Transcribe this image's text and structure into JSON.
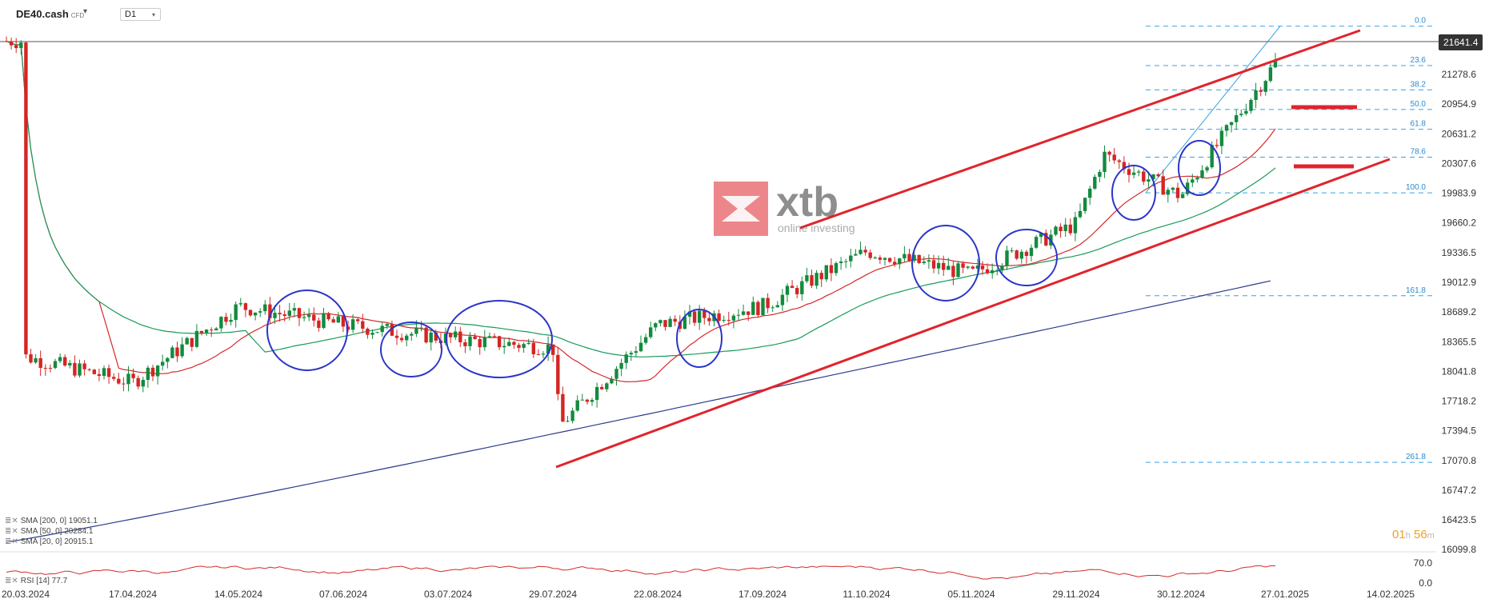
{
  "header": {
    "symbol": "DE40.cash",
    "symbol_type": "CFD",
    "timeframe": "D1"
  },
  "logo": {
    "brand": "xtb",
    "tagline": "online investing"
  },
  "current_price": "21641.4",
  "timer": {
    "hours": "01",
    "h_unit": "h",
    "minutes": "56",
    "m_unit": "m"
  },
  "indicators": [
    {
      "label": "SMA [200, 0] 19051.1",
      "color": "#2a3a8a"
    },
    {
      "label": "SMA [50, 0] 20284.1",
      "color": "#1a9a5a"
    },
    {
      "label": "SMA [20, 0] 20915.1",
      "color": "#d42a2a"
    }
  ],
  "rsi": {
    "label": "RSI [14] 77.7",
    "levels": [
      "70.0",
      "0.0"
    ]
  },
  "chart_data": {
    "type": "candlestick",
    "price_axis_ticks": [
      "21278.6",
      "20954.9",
      "20631.2",
      "20307.6",
      "19983.9",
      "19660.2",
      "19336.5",
      "19012.9",
      "18689.2",
      "18365.5",
      "18041.8",
      "17718.2",
      "17394.5",
      "17070.8",
      "16747.2",
      "16423.5",
      "16099.8"
    ],
    "date_axis_ticks": [
      "20.03.2024",
      "17.04.2024",
      "14.05.2024",
      "07.06.2024",
      "03.07.2024",
      "29.07.2024",
      "22.08.2024",
      "17.09.2024",
      "11.10.2024",
      "05.11.2024",
      "29.11.2024",
      "30.12.2024",
      "27.01.2025",
      "14.02.2025"
    ],
    "fibonacci_levels": [
      {
        "label": "0.0",
        "value": 21804
      },
      {
        "label": "23.6",
        "value": 21375
      },
      {
        "label": "38.2",
        "value": 21110
      },
      {
        "label": "50.0",
        "value": 20896
      },
      {
        "label": "61.8",
        "value": 20681
      },
      {
        "label": "78.6",
        "value": 20376
      },
      {
        "label": "100.0",
        "value": 19988
      },
      {
        "label": "161.8",
        "value": 18866
      },
      {
        "label": "261.8",
        "value": 17050
      }
    ],
    "ohlc_close_approx": [
      {
        "date": "20.03.2024",
        "close": 18200
      },
      {
        "date": "17.04.2024",
        "close": 17920
      },
      {
        "date": "14.05.2024",
        "close": 18750
      },
      {
        "date": "07.06.2024",
        "close": 18550
      },
      {
        "date": "03.07.2024",
        "close": 18400
      },
      {
        "date": "29.07.2024",
        "close": 18300
      },
      {
        "date": "05.08.2024",
        "close": 17450
      },
      {
        "date": "22.08.2024",
        "close": 18550
      },
      {
        "date": "17.09.2024",
        "close": 18750
      },
      {
        "date": "11.10.2024",
        "close": 19350
      },
      {
        "date": "05.11.2024",
        "close": 19100
      },
      {
        "date": "29.11.2024",
        "close": 19650
      },
      {
        "date": "12.12.2024",
        "close": 20400
      },
      {
        "date": "30.12.2024",
        "close": 19950
      },
      {
        "date": "27.01.2025",
        "close": 21550
      },
      {
        "date": "03.02.2025",
        "close": 21641.4
      }
    ],
    "sma_200_end": 19051.1,
    "sma_50_end": 20284.1,
    "sma_20_end": 20915.1,
    "rsi_last": 77.7
  }
}
